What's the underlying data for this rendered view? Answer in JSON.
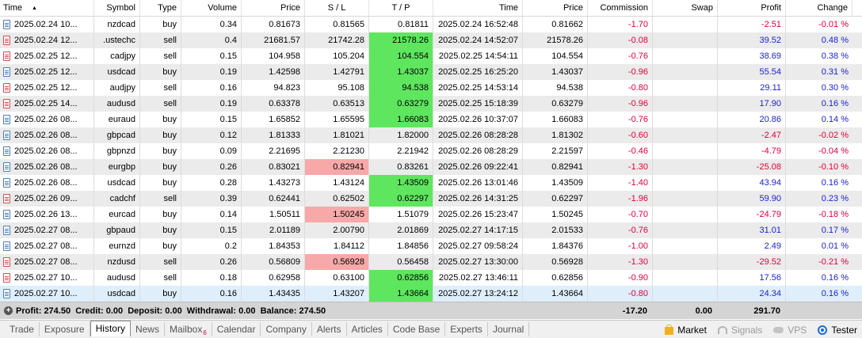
{
  "columns": {
    "time": "Time",
    "symbol": "Symbol",
    "type": "Type",
    "volume": "Volume",
    "price": "Price",
    "sl": "S / L",
    "tp": "T / P",
    "close_time": "Time",
    "close_price": "Price",
    "commission": "Commission",
    "swap": "Swap",
    "profit": "Profit",
    "change": "Change"
  },
  "sort_indicator": "▲",
  "rows": [
    {
      "time": "2025.02.24 10...",
      "symbol": "nzdcad",
      "type": "buy",
      "volume": "0.34",
      "price": "0.81673",
      "sl": "0.81565",
      "tp": "0.81811",
      "close_time": "2025.02.24 16:52:48",
      "close_price": "0.81662",
      "commission": "-1.70",
      "swap": "",
      "profit": "-2.51",
      "change": "-0.01 %"
    },
    {
      "time": "2025.02.24 12...",
      "symbol": ".ustechc",
      "type": "sell",
      "volume": "0.4",
      "price": "21681.57",
      "sl": "21742.28",
      "tp": "21578.26",
      "close_time": "2025.02.24 14:52:07",
      "close_price": "21578.26",
      "commission": "-0.08",
      "swap": "",
      "profit": "39.52",
      "change": "0.48 %"
    },
    {
      "time": "2025.02.25 12...",
      "symbol": "cadjpy",
      "type": "sell",
      "volume": "0.15",
      "price": "104.958",
      "sl": "105.204",
      "tp": "104.554",
      "close_time": "2025.02.25 14:54:11",
      "close_price": "104.554",
      "commission": "-0.76",
      "swap": "",
      "profit": "38.69",
      "change": "0.38 %"
    },
    {
      "time": "2025.02.25 12...",
      "symbol": "usdcad",
      "type": "buy",
      "volume": "0.19",
      "price": "1.42598",
      "sl": "1.42791",
      "tp": "1.43037",
      "close_time": "2025.02.25 16:25:20",
      "close_price": "1.43037",
      "commission": "-0.96",
      "swap": "",
      "profit": "55.54",
      "change": "0.31 %"
    },
    {
      "time": "2025.02.25 12...",
      "symbol": "audjpy",
      "type": "sell",
      "volume": "0.16",
      "price": "94.823",
      "sl": "95.108",
      "tp": "94.538",
      "close_time": "2025.02.25 14:53:14",
      "close_price": "94.538",
      "commission": "-0.80",
      "swap": "",
      "profit": "29.11",
      "change": "0.30 %"
    },
    {
      "time": "2025.02.25 14...",
      "symbol": "audusd",
      "type": "sell",
      "volume": "0.19",
      "price": "0.63378",
      "sl": "0.63513",
      "tp": "0.63279",
      "close_time": "2025.02.25 15:18:39",
      "close_price": "0.63279",
      "commission": "-0.96",
      "swap": "",
      "profit": "17.90",
      "change": "0.16 %"
    },
    {
      "time": "2025.02.26 08...",
      "symbol": "euraud",
      "type": "buy",
      "volume": "0.15",
      "price": "1.65852",
      "sl": "1.65595",
      "tp": "1.66083",
      "close_time": "2025.02.26 10:37:07",
      "close_price": "1.66083",
      "commission": "-0.76",
      "swap": "",
      "profit": "20.86",
      "change": "0.14 %"
    },
    {
      "time": "2025.02.26 08...",
      "symbol": "gbpcad",
      "type": "buy",
      "volume": "0.12",
      "price": "1.81333",
      "sl": "1.81021",
      "tp": "1.82000",
      "close_time": "2025.02.26 08:28:28",
      "close_price": "1.81302",
      "commission": "-0.60",
      "swap": "",
      "profit": "-2.47",
      "change": "-0.02 %"
    },
    {
      "time": "2025.02.26 08...",
      "symbol": "gbpnzd",
      "type": "buy",
      "volume": "0.09",
      "price": "2.21695",
      "sl": "2.21230",
      "tp": "2.21942",
      "close_time": "2025.02.26 08:28:29",
      "close_price": "2.21597",
      "commission": "-0.46",
      "swap": "",
      "profit": "-4.79",
      "change": "-0.04 %"
    },
    {
      "time": "2025.02.26 08...",
      "symbol": "eurgbp",
      "type": "buy",
      "volume": "0.26",
      "price": "0.83021",
      "sl": "0.82941",
      "tp": "0.83261",
      "close_time": "2025.02.26 09:22:41",
      "close_price": "0.82941",
      "commission": "-1.30",
      "swap": "",
      "profit": "-25.08",
      "change": "-0.10 %"
    },
    {
      "time": "2025.02.26 08...",
      "symbol": "usdcad",
      "type": "buy",
      "volume": "0.28",
      "price": "1.43273",
      "sl": "1.43124",
      "tp": "1.43509",
      "close_time": "2025.02.26 13:01:46",
      "close_price": "1.43509",
      "commission": "-1.40",
      "swap": "",
      "profit": "43.94",
      "change": "0.16 %"
    },
    {
      "time": "2025.02.26 09...",
      "symbol": "cadchf",
      "type": "sell",
      "volume": "0.39",
      "price": "0.62441",
      "sl": "0.62502",
      "tp": "0.62297",
      "close_time": "2025.02.26 14:31:25",
      "close_price": "0.62297",
      "commission": "-1.96",
      "swap": "",
      "profit": "59.90",
      "change": "0.23 %"
    },
    {
      "time": "2025.02.26 13...",
      "symbol": "eurcad",
      "type": "buy",
      "volume": "0.14",
      "price": "1.50511",
      "sl": "1.50245",
      "tp": "1.51079",
      "close_time": "2025.02.26 15:23:47",
      "close_price": "1.50245",
      "commission": "-0.70",
      "swap": "",
      "profit": "-24.79",
      "change": "-0.18 %"
    },
    {
      "time": "2025.02.27 08...",
      "symbol": "gbpaud",
      "type": "buy",
      "volume": "0.15",
      "price": "2.01189",
      "sl": "2.00790",
      "tp": "2.01869",
      "close_time": "2025.02.27 14:17:15",
      "close_price": "2.01533",
      "commission": "-0.76",
      "swap": "",
      "profit": "31.01",
      "change": "0.17 %"
    },
    {
      "time": "2025.02.27 08...",
      "symbol": "eurnzd",
      "type": "buy",
      "volume": "0.2",
      "price": "1.84353",
      "sl": "1.84112",
      "tp": "1.84856",
      "close_time": "2025.02.27 09:58:24",
      "close_price": "1.84376",
      "commission": "-1.00",
      "swap": "",
      "profit": "2.49",
      "change": "0.01 %"
    },
    {
      "time": "2025.02.27 08...",
      "symbol": "nzdusd",
      "type": "sell",
      "volume": "0.26",
      "price": "0.56809",
      "sl": "0.56928",
      "tp": "0.56458",
      "close_time": "2025.02.27 13:30:00",
      "close_price": "0.56928",
      "commission": "-1.30",
      "swap": "",
      "profit": "-29.52",
      "change": "-0.21 %"
    },
    {
      "time": "2025.02.27 10...",
      "symbol": "audusd",
      "type": "sell",
      "volume": "0.18",
      "price": "0.62958",
      "sl": "0.63100",
      "tp": "0.62856",
      "close_time": "2025.02.27 13:46:11",
      "close_price": "0.62856",
      "commission": "-0.90",
      "swap": "",
      "profit": "17.56",
      "change": "0.16 %"
    },
    {
      "time": "2025.02.27 10...",
      "symbol": "usdcad",
      "type": "buy",
      "volume": "0.16",
      "price": "1.43435",
      "sl": "1.43207",
      "tp": "1.43664",
      "close_time": "2025.02.27 13:24:12",
      "close_price": "1.43664",
      "commission": "-0.80",
      "swap": "",
      "profit": "24.34",
      "change": "0.16 %"
    }
  ],
  "summary": {
    "text": "Profit: 274.50  Credit: 0.00  Deposit: 0.00  Withdrawal: 0.00  Balance: 274.50",
    "commission": "-17.20",
    "swap": "0.00",
    "profit": "291.70"
  },
  "tabs": [
    "Trade",
    "Exposure",
    "History",
    "News",
    "Mailbox",
    "Calendar",
    "Company",
    "Alerts",
    "Articles",
    "Code Base",
    "Experts",
    "Journal"
  ],
  "mailbox_badge": "6",
  "active_tab": "History",
  "right_tabs": {
    "market": "Market",
    "signals": "Signals",
    "vps": "VPS",
    "tester": "Tester"
  },
  "colors": {
    "tp_hit": "#5ee65e",
    "sl_hit": "#f7a8a8",
    "negative": "#e0003a",
    "positive": "#1c22d3",
    "summary_bg": "#d4d4d4"
  },
  "icons": {
    "row": "document-icon",
    "summary": "plus-circle-icon",
    "market": "shopping-bag-icon",
    "signals": "signal-icon",
    "vps": "cloud-icon",
    "tester": "gear-icon"
  }
}
